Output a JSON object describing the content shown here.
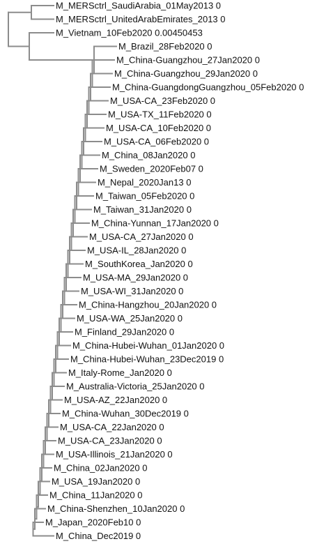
{
  "tree": {
    "leaves": [
      "M_MERSctrl_SaudiArabia_01May2013 0",
      "M_MERSctrl_UnitedArabEmirates_2013 0",
      "M_Vietnam_10Feb2020 0.00450453",
      "M_Brazil_28Feb2020 0",
      "M_China-Guangzhou_27Jan2020 0",
      "M_China-Guangzhou_29Jan2020 0",
      "M_China-GuangdongGuangzhou_05Feb2020 0",
      "M_USA-CA_23Feb2020 0",
      "M_USA-TX_11Feb2020 0",
      "M_USA-CA_10Feb2020 0",
      "M_USA-CA_06Feb2020 0",
      "M_China_08Jan2020 0",
      "M_Sweden_2020Feb07 0",
      "M_Nepal_2020Jan13 0",
      "M_Taiwan_05Feb2020 0",
      "M_Taiwan_31Jan2020 0",
      "M_China-Yunnan_17Jan2020 0",
      "M_USA-CA_27Jan2020 0",
      "M_USA-IL_28Jan2020 0",
      "M_SouthKorea_Jan2020 0",
      "M_USA-MA_29Jan2020 0",
      "M_USA-WI_31Jan2020 0",
      "M_China-Hangzhou_20Jan2020 0",
      "M_USA-WA_25Jan2020 0",
      "M_Finland_29Jan2020 0",
      "M_China-Hubei-Wuhan_01Jan2020 0",
      "M_China-Hubei-Wuhan_23Dec2019 0",
      "M_Italy-Rome_Jan2020 0",
      "M_Australia-Victoria_25Jan2020 0",
      "M_USA-AZ_22Jan2020 0",
      "M_China-Wuhan_30Dec2019 0",
      "M_USA-CA_22Jan2020 0",
      "M_USA-CA_23Jan2020 0",
      "M_USA-Illinois_21Jan2020 0",
      "M_China_02Jan2020 0",
      "M_USA_19Jan2020 0",
      "M_China_11Jan2020 0",
      "M_China-Shenzhen_10Jan2020 0",
      "M_Japan_2020Feb10 0",
      "M_China_Dec2019 0"
    ]
  },
  "colors": {
    "branch": "#8c8c8c",
    "label": "#111111",
    "background": "#ffffff"
  }
}
